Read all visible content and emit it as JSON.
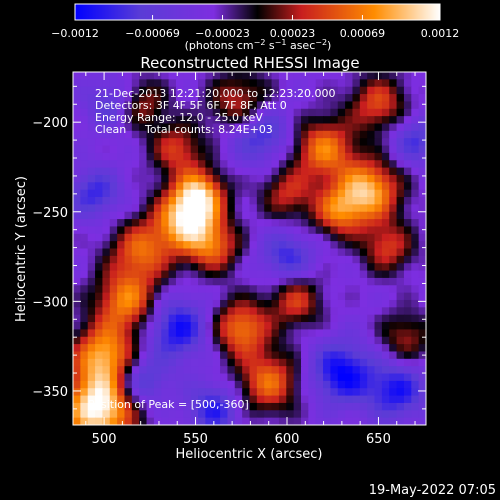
{
  "chart_data": {
    "type": "heatmap",
    "title": "Reconstructed RHESSI Image",
    "xlabel": "Heliocentric X (arcsec)",
    "ylabel": "Heliocentric Y (arcsec)",
    "xlim": [
      483,
      676
    ],
    "ylim": [
      -369,
      -172
    ],
    "x_ticks": [
      500,
      550,
      600,
      650
    ],
    "y_ticks": [
      -200,
      -250,
      -300,
      -350
    ],
    "colorbar": {
      "range": [
        -0.0012,
        0.0012
      ],
      "ticks": [
        "-0.0012",
        "-0.00069",
        "-0.00023",
        "0.00023",
        "0.00069",
        "0.0012"
      ],
      "label": "(photons cm",
      "label_parts": [
        "(photons cm",
        "-2",
        " s",
        "-1",
        " asec",
        "-2",
        ")"
      ],
      "colors": [
        "#0000ff",
        "#7d2ee0",
        "#000000",
        "#c81e1e",
        "#ff8c00",
        "#ffffff"
      ]
    },
    "annotations": [
      "21-Dec-2013 12:21:20.000 to 12:23:20.000",
      "Detectors: 3F 4F 5F 6F 7F 8F, Att 0",
      "Energy Range: 12.0 - 25.0 keV",
      "Clean",
      "Total counts: 8.24E+03"
    ],
    "peak_label": "Position of Peak = [500,-360]",
    "peak_position": [
      500,
      -360
    ]
  },
  "footer": {
    "timestamp": "19-May-2022 07:05"
  }
}
